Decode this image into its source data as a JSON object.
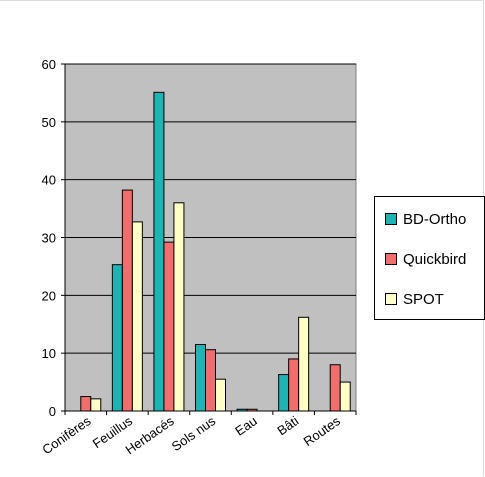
{
  "chart_data": {
    "type": "bar",
    "categories": [
      "Conifères",
      "Feuillus",
      "Herbacés",
      "Sols nus",
      "Eau",
      "Bâti",
      "Routes"
    ],
    "series": [
      {
        "name": "BD-Ortho",
        "color": "#1FB3B3",
        "values": [
          0,
          25.3,
          55.1,
          11.5,
          0.3,
          6.3,
          0
        ]
      },
      {
        "name": "Quickbird",
        "color": "#F06E6E",
        "values": [
          2.5,
          38.2,
          29.2,
          10.6,
          0.3,
          9.0,
          8.0
        ]
      },
      {
        "name": "SPOT",
        "color": "#FFFFC8",
        "values": [
          2.1,
          32.7,
          36.0,
          5.5,
          0,
          16.2,
          5.0
        ]
      }
    ],
    "ylim": [
      0,
      60
    ],
    "yticks": [
      0,
      10,
      20,
      30,
      40,
      50,
      60
    ],
    "grid": true,
    "plot_background": "#C0C0C0",
    "legend_position": "right",
    "title": "",
    "xlabel": "",
    "ylabel": ""
  }
}
